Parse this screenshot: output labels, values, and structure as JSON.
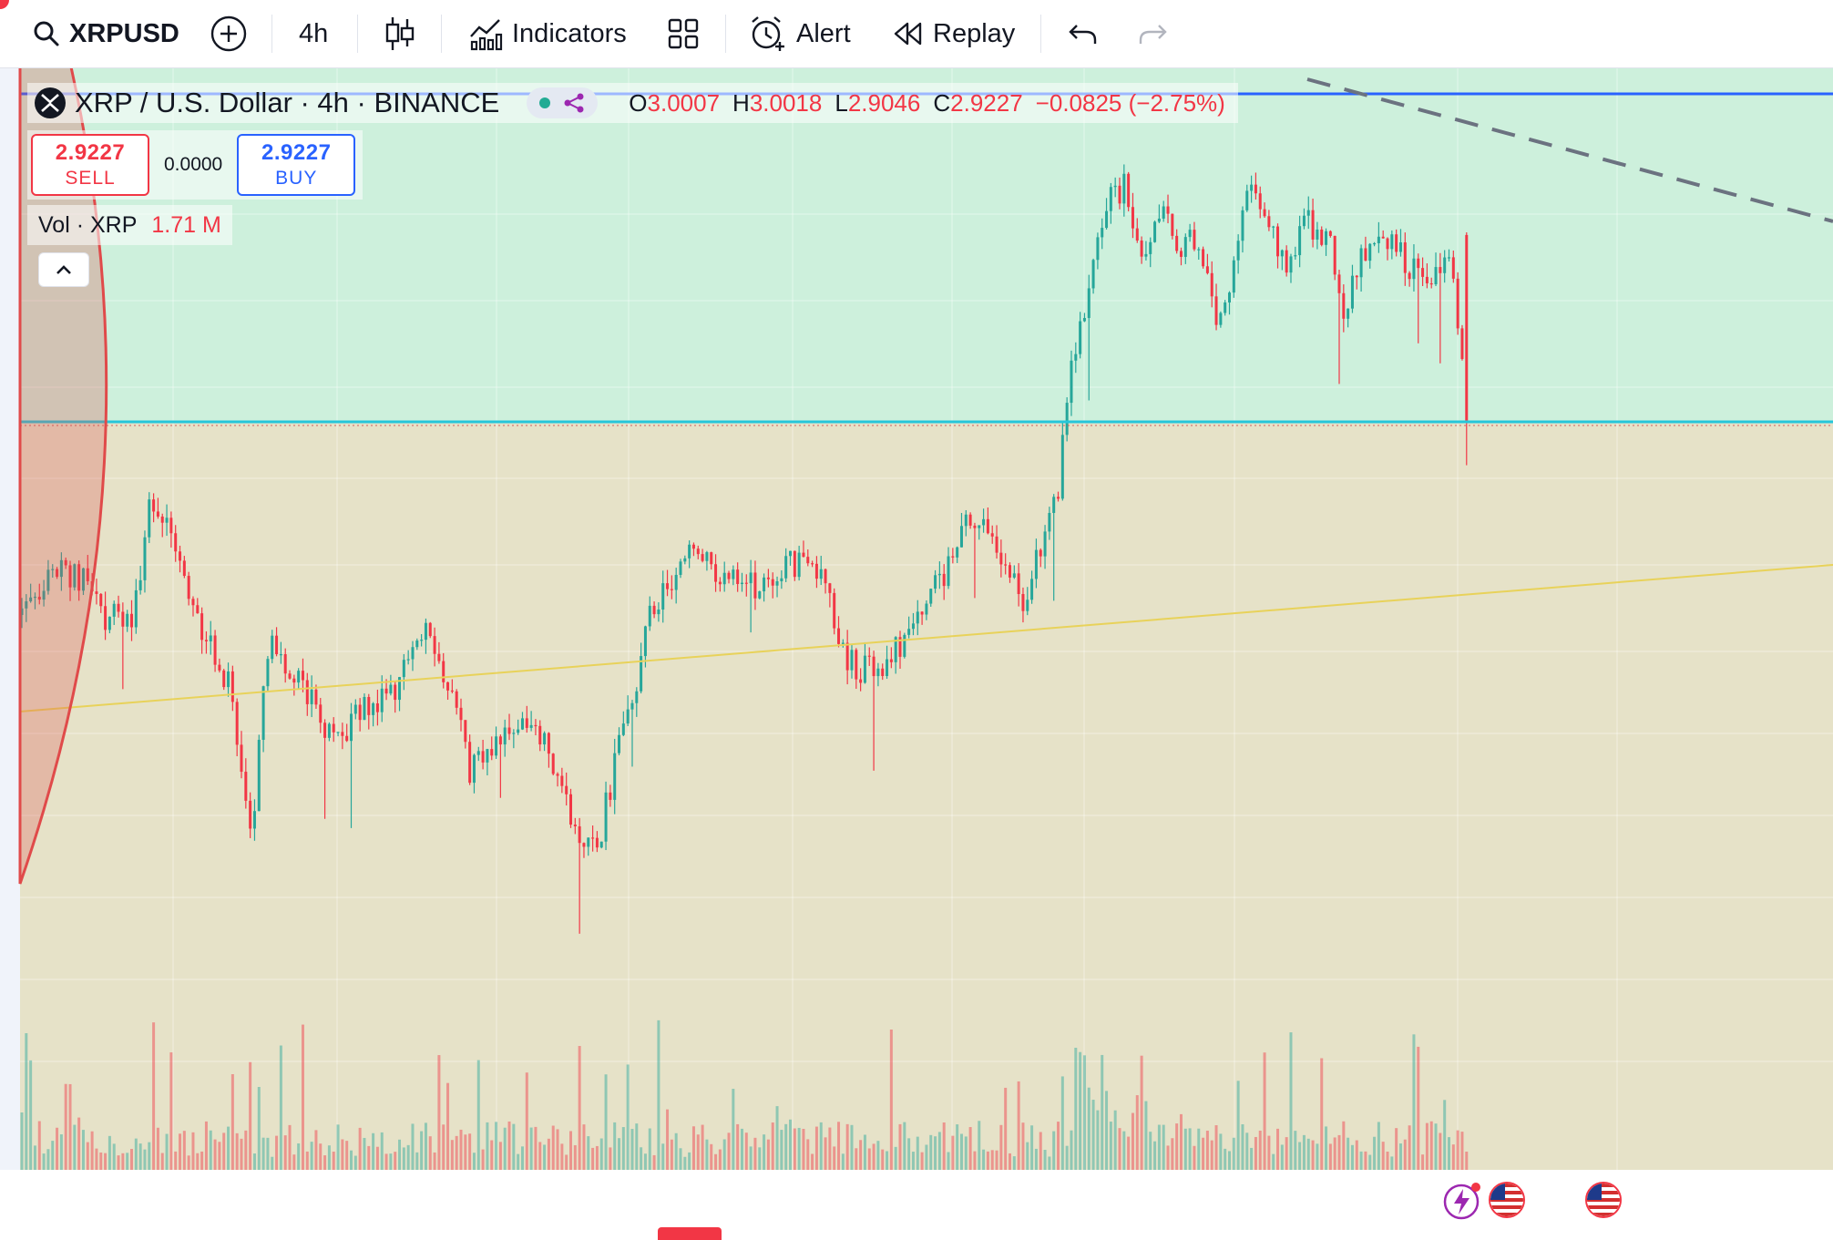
{
  "toolbar": {
    "symbol": "XRPUSD",
    "interval": "4h",
    "indicators_label": "Indicators",
    "alert_label": "Alert",
    "replay_label": "Replay",
    "icons": [
      "search-icon",
      "add-symbol-icon",
      "candles-icon",
      "indicators-icon",
      "layout-grid-icon",
      "alarm-icon",
      "replay-icon",
      "undo-icon",
      "redo-icon"
    ]
  },
  "legend": {
    "title": "XRP / U.S. Dollar · 4h · BINANCE",
    "open_label": "O",
    "open": "3.0007",
    "high_label": "H",
    "high": "3.0018",
    "low_label": "L",
    "low": "2.9046",
    "close_label": "C",
    "close": "2.9227",
    "change": "−0.0825 (−2.75%)"
  },
  "trade": {
    "sell_price": "2.9227",
    "sell_label": "SELL",
    "spread": "0.0000",
    "buy_price": "2.9227",
    "buy_label": "BUY"
  },
  "volume": {
    "label": "Vol · XRP",
    "value": "1.71 M"
  },
  "colors": {
    "up": "#26a69a",
    "down": "#f23645",
    "zone_upper": "#cdf0dc",
    "zone_lower": "#e6e2c8",
    "level_line": "#26c6da",
    "top_line": "#2962ff",
    "trend_line": "#e8d25a",
    "circle": "#e04a4a"
  },
  "chart_data": {
    "type": "candlestick",
    "seed": 20250807,
    "note_visible": "",
    "last": {
      "open": 3.0007,
      "high": 3.0018,
      "low": 2.9046,
      "close": 2.9227,
      "volume_m": 1.71
    }
  }
}
